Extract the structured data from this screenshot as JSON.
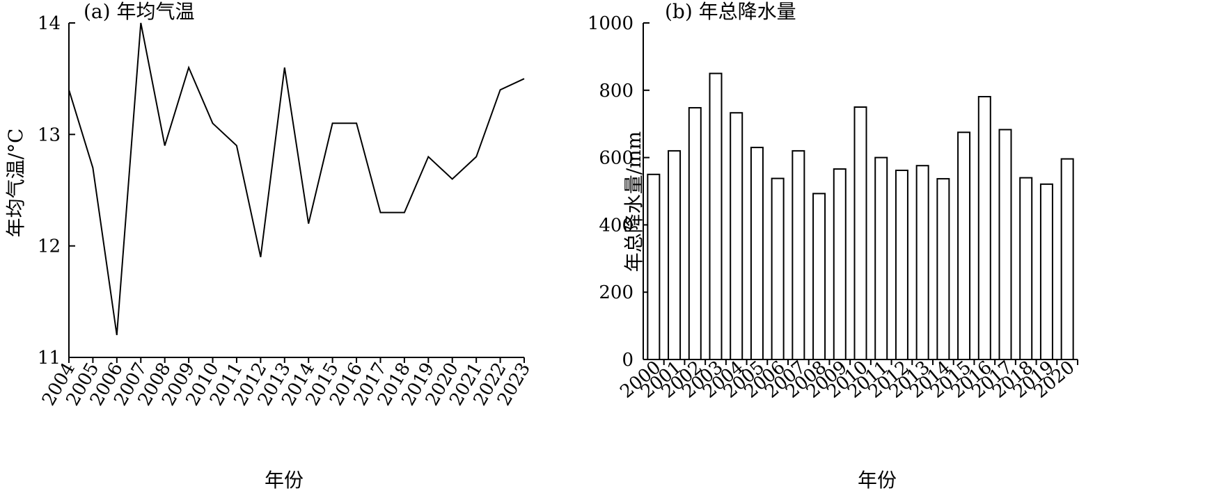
{
  "chart_data": [
    {
      "type": "line",
      "title": "(a) 年均气温",
      "xlabel": "年份",
      "ylabel": "年均气温/°C",
      "x": [
        "2004",
        "2005",
        "2006",
        "2007",
        "2008",
        "2009",
        "2010",
        "2011",
        "2012",
        "2013",
        "2014",
        "2015",
        "2016",
        "2017",
        "2018",
        "2019",
        "2020",
        "2021",
        "2022",
        "2023"
      ],
      "values": [
        13.4,
        12.7,
        11.2,
        14.0,
        12.9,
        13.6,
        13.1,
        12.9,
        11.9,
        13.6,
        12.2,
        13.1,
        13.1,
        12.3,
        12.3,
        12.8,
        12.6,
        12.8,
        13.4,
        13.5
      ],
      "ylim": [
        11,
        14
      ],
      "yticks": [
        11,
        12,
        13,
        14
      ],
      "grid": false,
      "color": "#000000"
    },
    {
      "type": "bar",
      "title": "(b) 年总降水量",
      "xlabel": "年份",
      "ylabel": "年总降水量/mm",
      "categories": [
        "2000",
        "2001",
        "2002",
        "2003",
        "2004",
        "2005",
        "2006",
        "2007",
        "2008",
        "2009",
        "2010",
        "2011",
        "2012",
        "2013",
        "2014",
        "2015",
        "2016",
        "2017",
        "2018",
        "2019",
        "2020"
      ],
      "values": [
        550,
        620,
        748,
        850,
        733,
        630,
        538,
        620,
        493,
        566,
        750,
        600,
        562,
        576,
        537,
        675,
        781,
        683,
        540,
        521,
        596
      ],
      "ylim": [
        0,
        1000
      ],
      "yticks": [
        0,
        200,
        400,
        600,
        800,
        1000
      ],
      "grid": false,
      "color": "#000000"
    }
  ]
}
